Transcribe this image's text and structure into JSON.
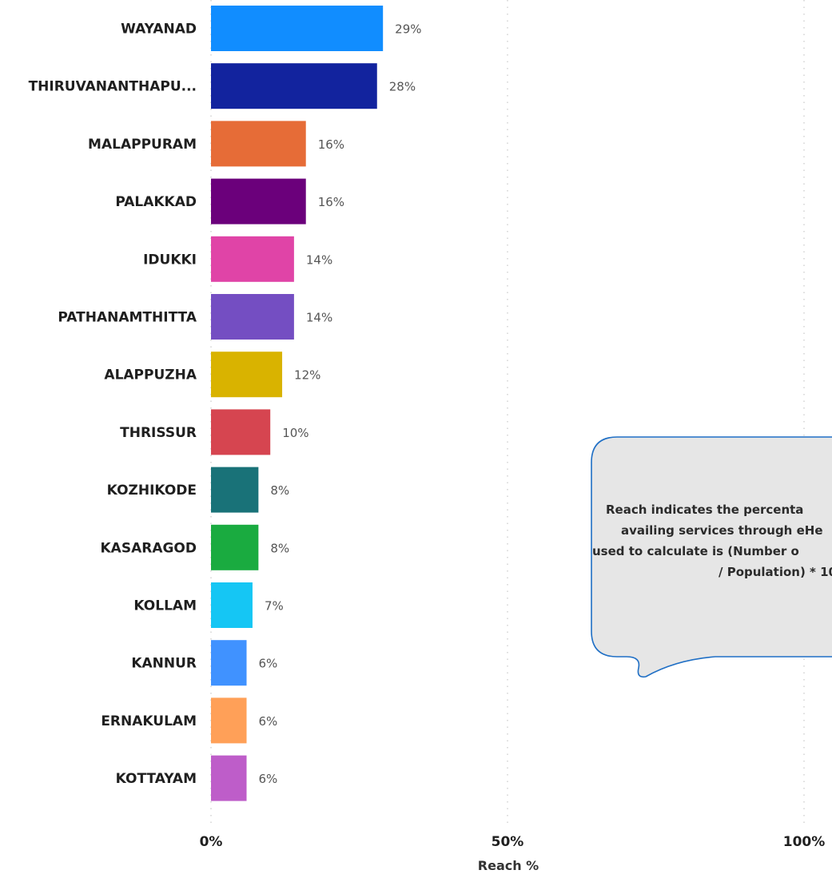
{
  "chart_data": {
    "type": "bar",
    "orientation": "horizontal",
    "categories": [
      "WAYANAD",
      "THIRUVANANTHAPU...",
      "MALAPPURAM",
      "PALAKKAD",
      "IDUKKI",
      "PATHANAMTHITTA",
      "ALAPPUZHA",
      "THRISSUR",
      "KOZHIKODE",
      "KASARAGOD",
      "KOLLAM",
      "KANNUR",
      "ERNAKULAM",
      "KOTTAYAM"
    ],
    "values": [
      29,
      28,
      16,
      16,
      14,
      14,
      12,
      10,
      8,
      8,
      7,
      6,
      6,
      6
    ],
    "data_labels": [
      "29%",
      "28%",
      "16%",
      "16%",
      "14%",
      "14%",
      "12%",
      "10%",
      "8%",
      "8%",
      "7%",
      "6%",
      "6%",
      "6%"
    ],
    "colors": [
      "#118DFF",
      "#12239E",
      "#E66C37",
      "#6B007B",
      "#E044A7",
      "#744EC2",
      "#D9B300",
      "#D64550",
      "#197278",
      "#1AAB40",
      "#15C6F4",
      "#4092FF",
      "#FFA058",
      "#BE5DC9"
    ],
    "xlabel": "Reach %",
    "xlim": [
      0,
      100
    ],
    "x_ticks": [
      0,
      50,
      100
    ],
    "x_tick_labels": [
      "0%",
      "50%",
      "100%"
    ],
    "grid": "vertical-dotted",
    "annotation": {
      "lines": [
        "Reach indicates the percenta",
        "availing services through eHe",
        "used to calculate is (Number o",
        "/ Population) * 10"
      ],
      "fill": "#E6E6E6",
      "stroke": "#1F6FC5"
    }
  }
}
